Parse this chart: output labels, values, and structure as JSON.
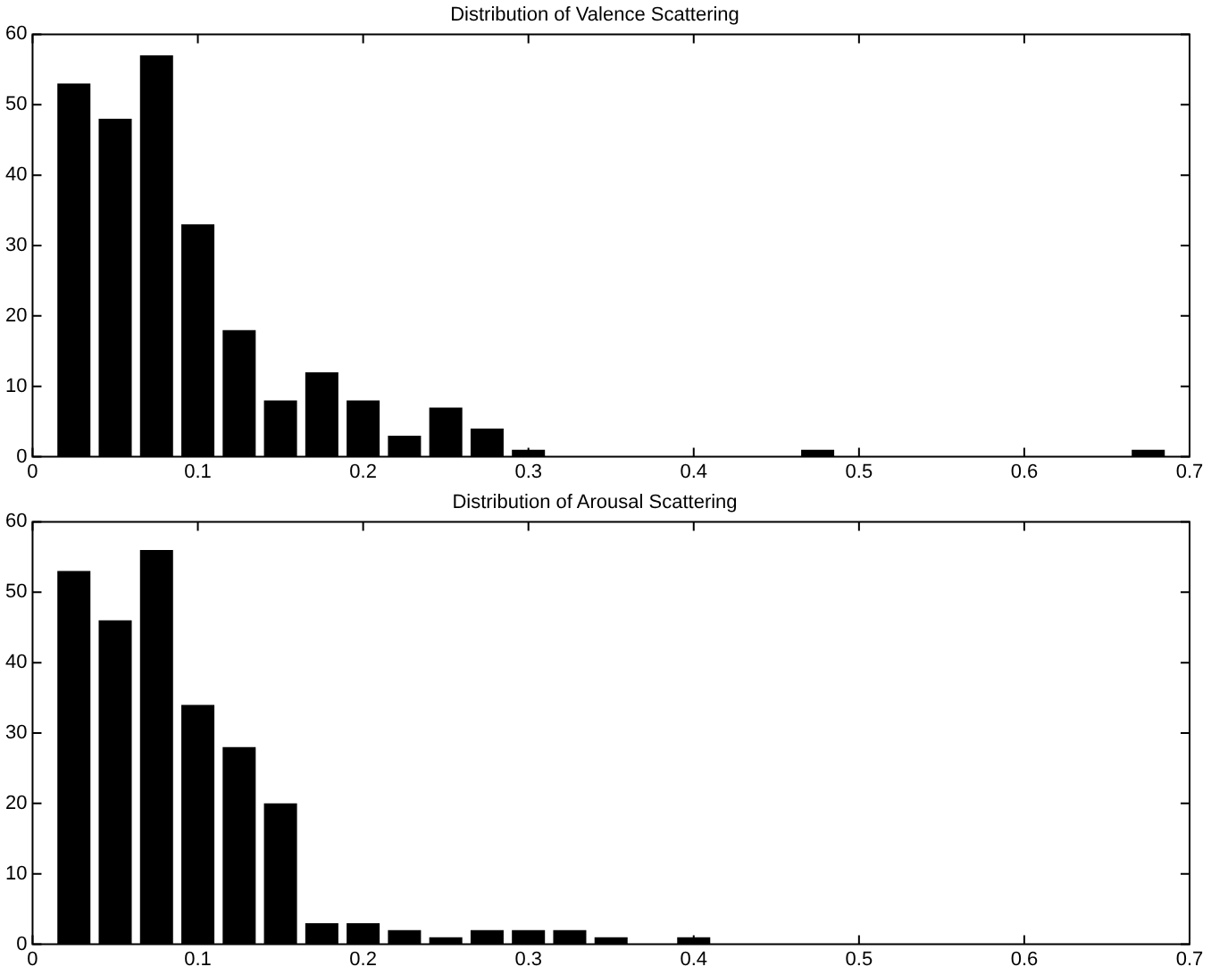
{
  "chart_data": [
    {
      "type": "histogram",
      "title": "Distribution of Valence Scattering",
      "bins": [
        0.0125,
        0.0375,
        0.0625,
        0.0875,
        0.1125,
        0.1375,
        0.1625,
        0.1875,
        0.2125,
        0.2375,
        0.2625,
        0.2875,
        0.3125,
        0.3375,
        0.3625,
        0.3875,
        0.4125,
        0.4375,
        0.4625,
        0.4875,
        0.5125,
        0.5375,
        0.5625,
        0.5875,
        0.6125,
        0.6375,
        0.6625,
        0.6875
      ],
      "values": [
        53,
        48,
        57,
        33,
        18,
        8,
        12,
        8,
        3,
        7,
        4,
        1,
        0,
        0,
        0,
        0,
        0,
        0,
        1,
        0,
        0,
        0,
        0,
        0,
        0,
        0,
        1
      ],
      "color": "#000000",
      "xlim": [
        0,
        0.7
      ],
      "xticks": [
        0,
        0.1,
        0.2,
        0.3,
        0.4,
        0.5,
        0.6,
        0.7
      ],
      "ylim": [
        0,
        60
      ],
      "yticks": [
        0,
        10,
        20,
        30,
        40,
        50,
        60
      ],
      "grid": false,
      "legend": false
    },
    {
      "type": "histogram",
      "title": "Distribution of Arousal Scattering",
      "bins": [
        0.0125,
        0.0375,
        0.0625,
        0.0875,
        0.1125,
        0.1375,
        0.1625,
        0.1875,
        0.2125,
        0.2375,
        0.2625,
        0.2875,
        0.3125,
        0.3375,
        0.3625,
        0.3875,
        0.4125
      ],
      "values": [
        53,
        46,
        56,
        34,
        28,
        20,
        3,
        3,
        2,
        1,
        2,
        2,
        2,
        1,
        0,
        1
      ],
      "color": "#000000",
      "xlim": [
        0,
        0.7
      ],
      "xticks": [
        0,
        0.1,
        0.2,
        0.3,
        0.4,
        0.5,
        0.6,
        0.7
      ],
      "ylim": [
        0,
        60
      ],
      "yticks": [
        0,
        10,
        20,
        30,
        40,
        50,
        60
      ],
      "grid": false,
      "legend": false
    }
  ]
}
